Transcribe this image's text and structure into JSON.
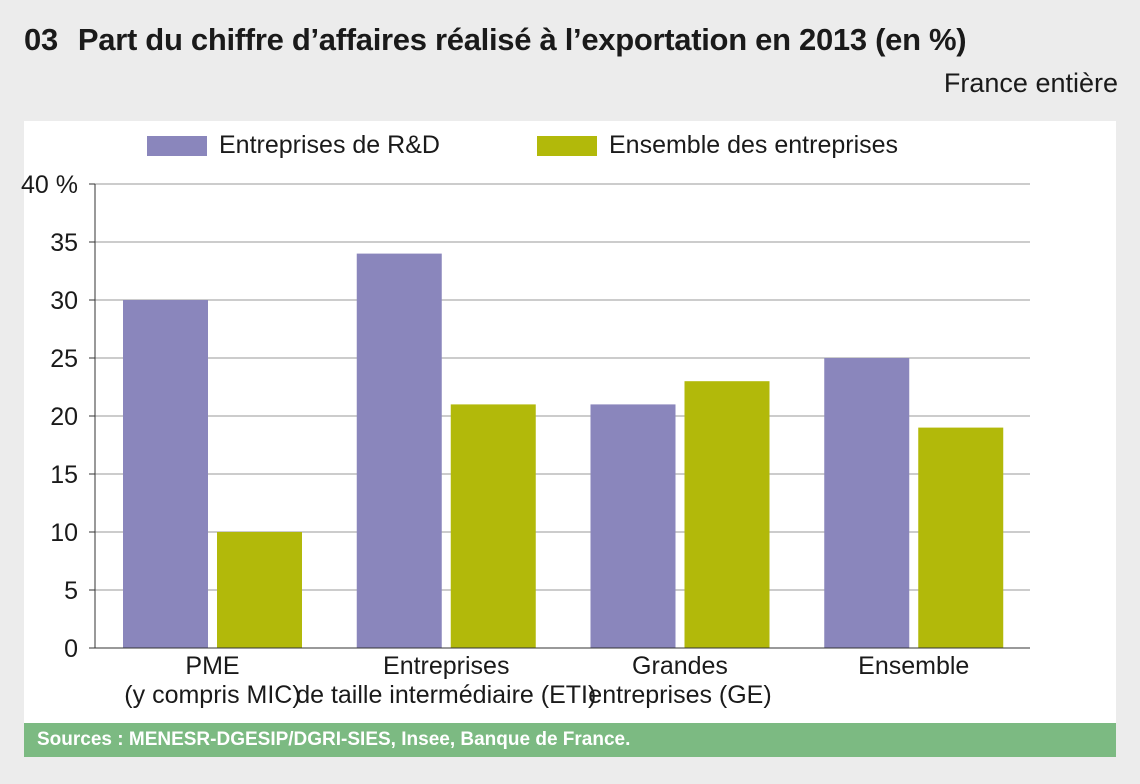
{
  "header": {
    "number": "03",
    "title": "Part du chiffre d’affaires réalisé à l’exportation en 2013 (en %)",
    "subtitle": "France entière"
  },
  "footer": {
    "source": "Sources : MENESR-DGESIP/DGRI-SIES, Insee, Banque de France."
  },
  "chart_data": {
    "type": "bar",
    "title": "Part du chiffre d’affaires réalisé à l’exportation en 2013 (en %)",
    "subtitle": "France entière",
    "categories": [
      [
        "PME",
        "(y compris MIC)"
      ],
      [
        "Entreprises",
        "de taille intermédiaire (ETI)"
      ],
      [
        "Grandes",
        "entreprises (GE)"
      ],
      [
        "Ensemble"
      ]
    ],
    "series": [
      {
        "name": "Entreprises de R&D",
        "color": "#8a86bc",
        "values": [
          30,
          34,
          21,
          25
        ]
      },
      {
        "name": "Ensemble des entreprises",
        "color": "#b2b90a",
        "values": [
          10,
          21,
          23,
          19
        ]
      }
    ],
    "yticks": [
      "0",
      "5",
      "10",
      "15",
      "20",
      "25",
      "30",
      "35",
      "40 %"
    ],
    "ylim": [
      0,
      40
    ],
    "grid": true,
    "legend": "top"
  }
}
